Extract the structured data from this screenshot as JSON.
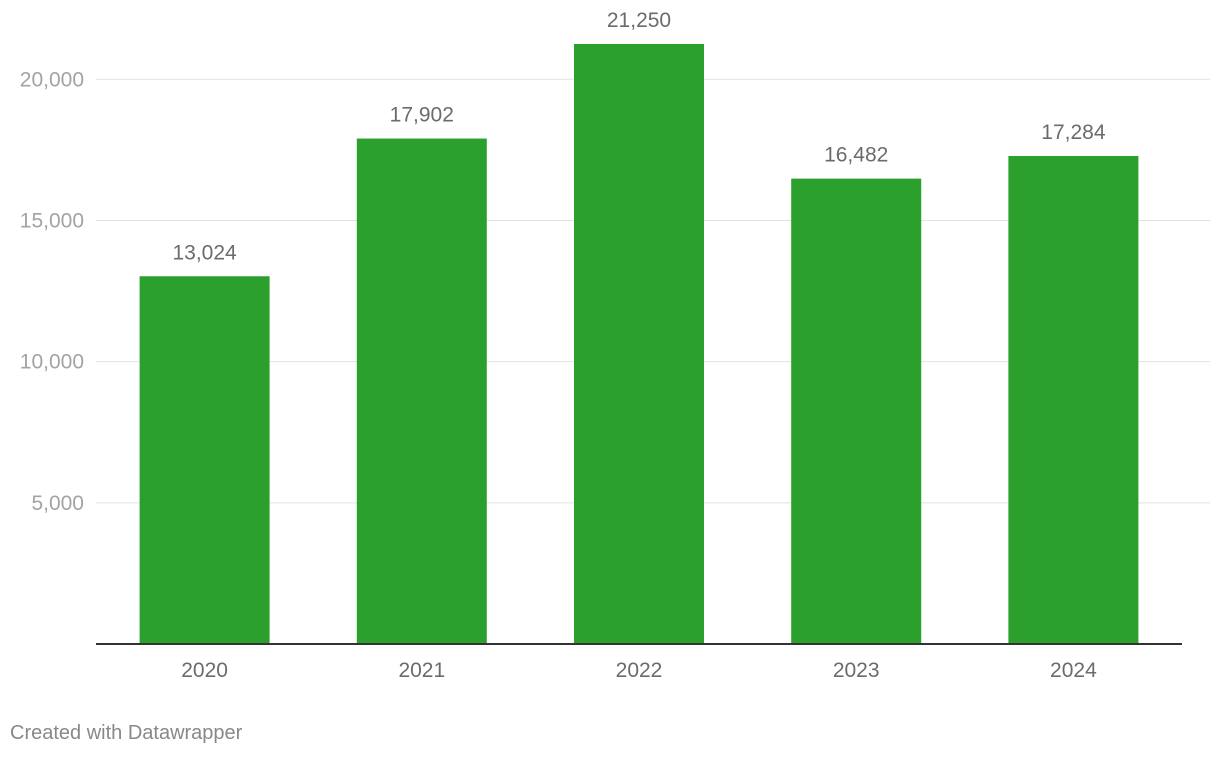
{
  "chart_data": {
    "type": "bar",
    "categories": [
      "2020",
      "2021",
      "2022",
      "2023",
      "2024"
    ],
    "values": [
      13024,
      17902,
      21250,
      16482,
      17284
    ],
    "value_labels": [
      "13,024",
      "17,902",
      "21,250",
      "16,482",
      "17,284"
    ],
    "y_ticks": [
      5000,
      10000,
      15000,
      20000
    ],
    "y_tick_labels": [
      "5,000",
      "10,000",
      "15,000",
      "20,000"
    ],
    "ylim": [
      0,
      21250
    ],
    "grid": true,
    "bar_color": "#2ca02c"
  },
  "footer": {
    "credit": "Created with Datawrapper"
  }
}
